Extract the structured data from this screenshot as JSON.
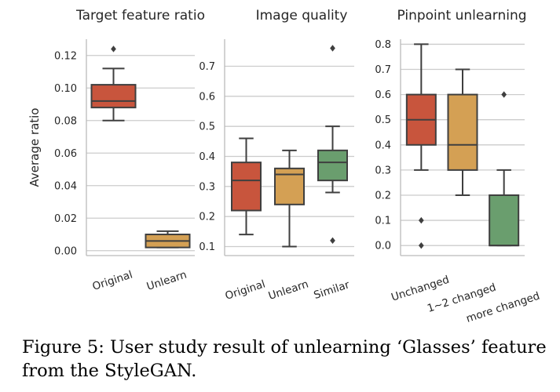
{
  "figure": {
    "caption": "Figure 5: User study result of unlearning ‘Glasses’ feature from the StyleGAN."
  },
  "chart_data": [
    {
      "type": "box",
      "title": "Target feature ratio",
      "xlabel": "",
      "ylabel": "Average ratio",
      "ylim": [
        -0.003,
        0.13
      ],
      "yticks": [
        0.0,
        0.02,
        0.04,
        0.06,
        0.08,
        0.1,
        0.12
      ],
      "ytick_labels": [
        "0.00",
        "0.02",
        "0.04",
        "0.06",
        "0.08",
        "0.10",
        "0.12"
      ],
      "grid": "horizontal",
      "categories": [
        "Original",
        "Unlearn"
      ],
      "boxes": [
        {
          "category": "Original",
          "color": "#C8553D",
          "whislo": 0.08,
          "q1": 0.088,
          "med": 0.092,
          "q3": 0.102,
          "whishi": 0.112,
          "fliers": [
            0.124
          ]
        },
        {
          "category": "Unlearn",
          "color": "#D4A054",
          "whislo": 0.002,
          "q1": 0.002,
          "med": 0.006,
          "q3": 0.01,
          "whishi": 0.012,
          "fliers": []
        }
      ]
    },
    {
      "type": "box",
      "title": "Image quality",
      "xlabel": "",
      "ylabel": "",
      "ylim": [
        0.07,
        0.79
      ],
      "yticks": [
        0.1,
        0.2,
        0.3,
        0.4,
        0.5,
        0.6,
        0.7
      ],
      "ytick_labels": [
        "0.1",
        "0.2",
        "0.3",
        "0.4",
        "0.5",
        "0.6",
        "0.7"
      ],
      "grid": "horizontal",
      "categories": [
        "Original",
        "Unlearn",
        "Similar"
      ],
      "boxes": [
        {
          "category": "Original",
          "color": "#C8553D",
          "whislo": 0.14,
          "q1": 0.22,
          "med": 0.32,
          "q3": 0.38,
          "whishi": 0.46,
          "fliers": []
        },
        {
          "category": "Unlearn",
          "color": "#D4A054",
          "whislo": 0.1,
          "q1": 0.24,
          "med": 0.34,
          "q3": 0.36,
          "whishi": 0.42,
          "fliers": []
        },
        {
          "category": "Similar",
          "color": "#6A9E6E",
          "whislo": 0.28,
          "q1": 0.32,
          "med": 0.38,
          "q3": 0.42,
          "whishi": 0.5,
          "fliers": [
            0.12,
            0.76
          ]
        }
      ]
    },
    {
      "type": "box",
      "title": "Pinpoint unlearning",
      "xlabel": "",
      "ylabel": "",
      "ylim": [
        -0.04,
        0.82
      ],
      "yticks": [
        0.0,
        0.1,
        0.2,
        0.3,
        0.4,
        0.5,
        0.6,
        0.7,
        0.8
      ],
      "ytick_labels": [
        "0.0",
        "0.1",
        "0.2",
        "0.3",
        "0.4",
        "0.5",
        "0.6",
        "0.7",
        "0.8"
      ],
      "grid": "horizontal",
      "categories": [
        "Unchanged",
        "1~2 changed",
        "more changed"
      ],
      "boxes": [
        {
          "category": "Unchanged",
          "color": "#C8553D",
          "whislo": 0.3,
          "q1": 0.4,
          "med": 0.5,
          "q3": 0.6,
          "whishi": 0.8,
          "fliers": [
            0.1,
            0.0
          ]
        },
        {
          "category": "1~2 changed",
          "color": "#D4A054",
          "whislo": 0.2,
          "q1": 0.3,
          "med": 0.4,
          "q3": 0.6,
          "whishi": 0.7,
          "fliers": []
        },
        {
          "category": "more changed",
          "color": "#6A9E6E",
          "whislo": 0.0,
          "q1": 0.0,
          "med": 0.0,
          "q3": 0.2,
          "whishi": 0.3,
          "fliers": [
            0.6
          ]
        }
      ]
    }
  ]
}
